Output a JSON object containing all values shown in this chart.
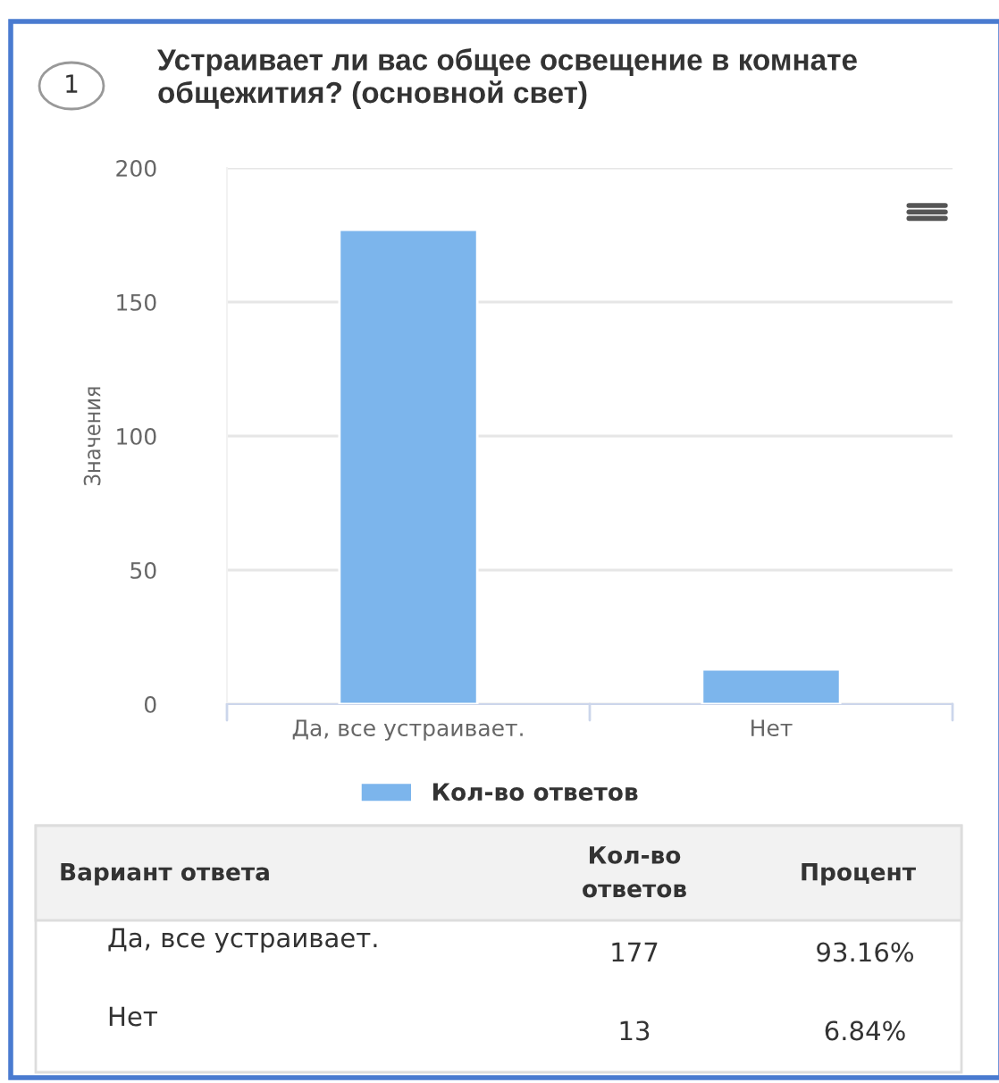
{
  "chart_data": {
    "type": "bar",
    "title": "Устраивает ли вас общее освещение в комнате общежития? (основной свет)",
    "ylabel": "Значения",
    "categories": [
      "Да, все устраивает.",
      "Нет"
    ],
    "series": [
      {
        "name": "Кол-во ответов",
        "color": "#7cb5ec",
        "values": [
          177,
          13
        ]
      }
    ],
    "ylim": [
      0,
      200
    ],
    "yticks": [
      0,
      50,
      100,
      150,
      200
    ],
    "grid": "y",
    "legend": "bottom",
    "annotations": [
      "1",
      "Вариант ответа",
      "Кол-во ответов",
      "Процент",
      "177",
      "93.16%",
      "13",
      "6.84%"
    ]
  }
}
